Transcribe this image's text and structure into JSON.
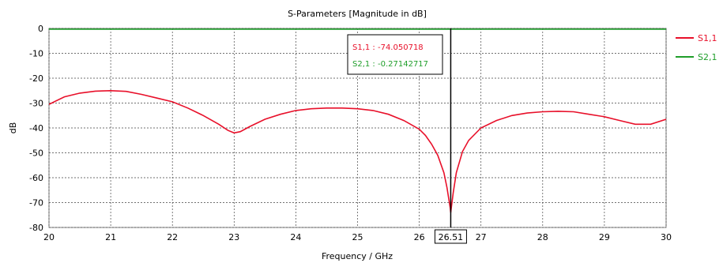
{
  "chart_data": {
    "type": "line",
    "title": "S-Parameters [Magnitude in dB]",
    "xlabel": "Frequency / GHz",
    "ylabel": "dB",
    "xlim": [
      20,
      30
    ],
    "ylim": [
      -80,
      0
    ],
    "xticks": [
      "20",
      "21",
      "22",
      "23",
      "24",
      "25",
      "26",
      "27",
      "28",
      "29",
      "30"
    ],
    "yticks": [
      "0",
      "-10",
      "-20",
      "-30",
      "-40",
      "-50",
      "-60",
      "-70",
      "-80"
    ],
    "grid": true,
    "legend_position": "right",
    "marker": {
      "x": 26.51,
      "x_label": "26.51",
      "labels": [
        "S1,1 : -74.050718",
        "S2,1 : -0.27142717"
      ]
    },
    "series": [
      {
        "name": "S1,1",
        "color": "#e8102a",
        "x": [
          20,
          20.25,
          20.5,
          20.75,
          21,
          21.25,
          21.5,
          21.75,
          22,
          22.25,
          22.5,
          22.75,
          22.9,
          23,
          23.1,
          23.25,
          23.5,
          23.75,
          24,
          24.25,
          24.5,
          24.75,
          25,
          25.25,
          25.5,
          25.75,
          26,
          26.1,
          26.2,
          26.3,
          26.4,
          26.45,
          26.5,
          26.51,
          26.55,
          26.6,
          26.7,
          26.8,
          27,
          27.25,
          27.5,
          27.75,
          28,
          28.25,
          28.5,
          28.75,
          29,
          29.25,
          29.5,
          29.75,
          30
        ],
        "values": [
          -30.5,
          -27.5,
          -26,
          -25.2,
          -25,
          -25.3,
          -26.5,
          -28,
          -29.5,
          -32,
          -35,
          -38.5,
          -41,
          -42,
          -41.5,
          -39.5,
          -36.5,
          -34.5,
          -33,
          -32.3,
          -32,
          -32,
          -32.3,
          -33,
          -34.5,
          -37,
          -40.5,
          -43,
          -46.5,
          -51,
          -58,
          -64,
          -72,
          -74,
          -66,
          -58,
          -49.5,
          -45,
          -40,
          -37,
          -35,
          -34,
          -33.5,
          -33.3,
          -33.5,
          -34.5,
          -35.5,
          -37,
          -38.5,
          -38.5,
          -36.5
        ]
      },
      {
        "name": "S2,1",
        "color": "#1f9e2a",
        "x": [
          20,
          30
        ],
        "values": [
          -0.27,
          -0.27
        ]
      }
    ]
  }
}
